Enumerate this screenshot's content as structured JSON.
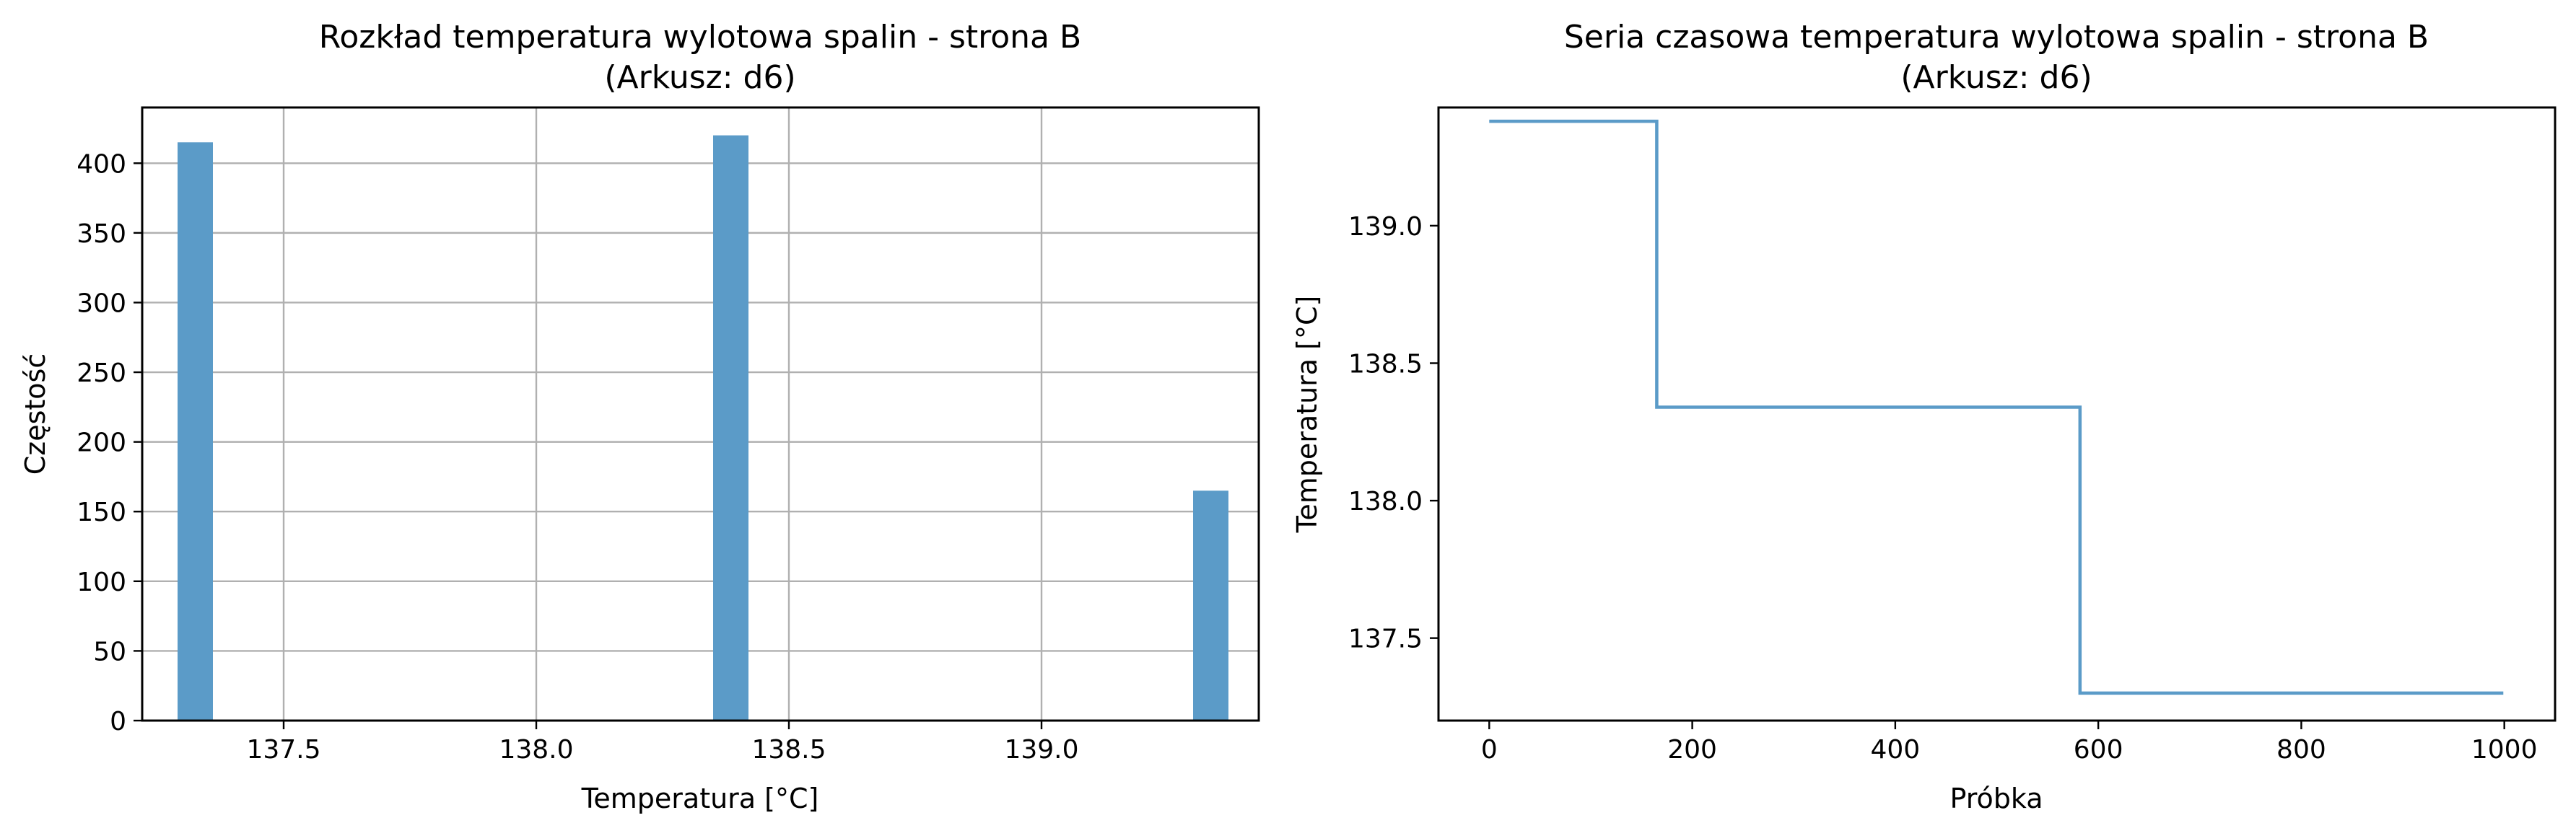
{
  "chart_data": [
    {
      "type": "bar",
      "title_line1": "Rozkład temperatura wylotowa spalin - strona B",
      "title_line2": "(Arkusz: d6)",
      "xlabel": "Temperatura [°C]",
      "ylabel": "Częstość",
      "xlim": [
        137.22,
        139.43
      ],
      "ylim": [
        0,
        440
      ],
      "grid": true,
      "bar_color": "#5b9bc8",
      "bars": [
        {
          "x0": 137.29,
          "x1": 137.36,
          "value": 415
        },
        {
          "x0": 138.35,
          "x1": 138.42,
          "value": 420
        },
        {
          "x0": 139.3,
          "x1": 139.37,
          "value": 165
        }
      ],
      "xticks": [
        "137.5",
        "138.0",
        "138.5",
        "139.0"
      ],
      "xtick_values": [
        137.5,
        138.0,
        138.5,
        139.0
      ],
      "yticks": [
        "0",
        "50",
        "100",
        "150",
        "200",
        "250",
        "300",
        "350",
        "400"
      ],
      "ytick_values": [
        0,
        50,
        100,
        150,
        200,
        250,
        300,
        350,
        400
      ]
    },
    {
      "type": "line",
      "title_line1": "Seria czasowa temperatura wylotowa spalin - strona B",
      "title_line2": "(Arkusz: d6)",
      "xlabel": "Próbka",
      "ylabel": "Temperatura [°C]",
      "xlim": [
        -50,
        1050
      ],
      "ylim": [
        137.2,
        139.43
      ],
      "grid": false,
      "line_color": "#5b9bc8",
      "x": [
        0,
        165,
        165,
        582,
        582,
        999
      ],
      "y": [
        139.38,
        139.38,
        138.34,
        138.34,
        137.3,
        137.3
      ],
      "xticks": [
        "0",
        "200",
        "400",
        "600",
        "800",
        "1000"
      ],
      "xtick_values": [
        0,
        200,
        400,
        600,
        800,
        1000
      ],
      "yticks": [
        "137.5",
        "138.0",
        "138.5",
        "139.0"
      ],
      "ytick_values": [
        137.5,
        138.0,
        138.5,
        139.0
      ]
    }
  ]
}
